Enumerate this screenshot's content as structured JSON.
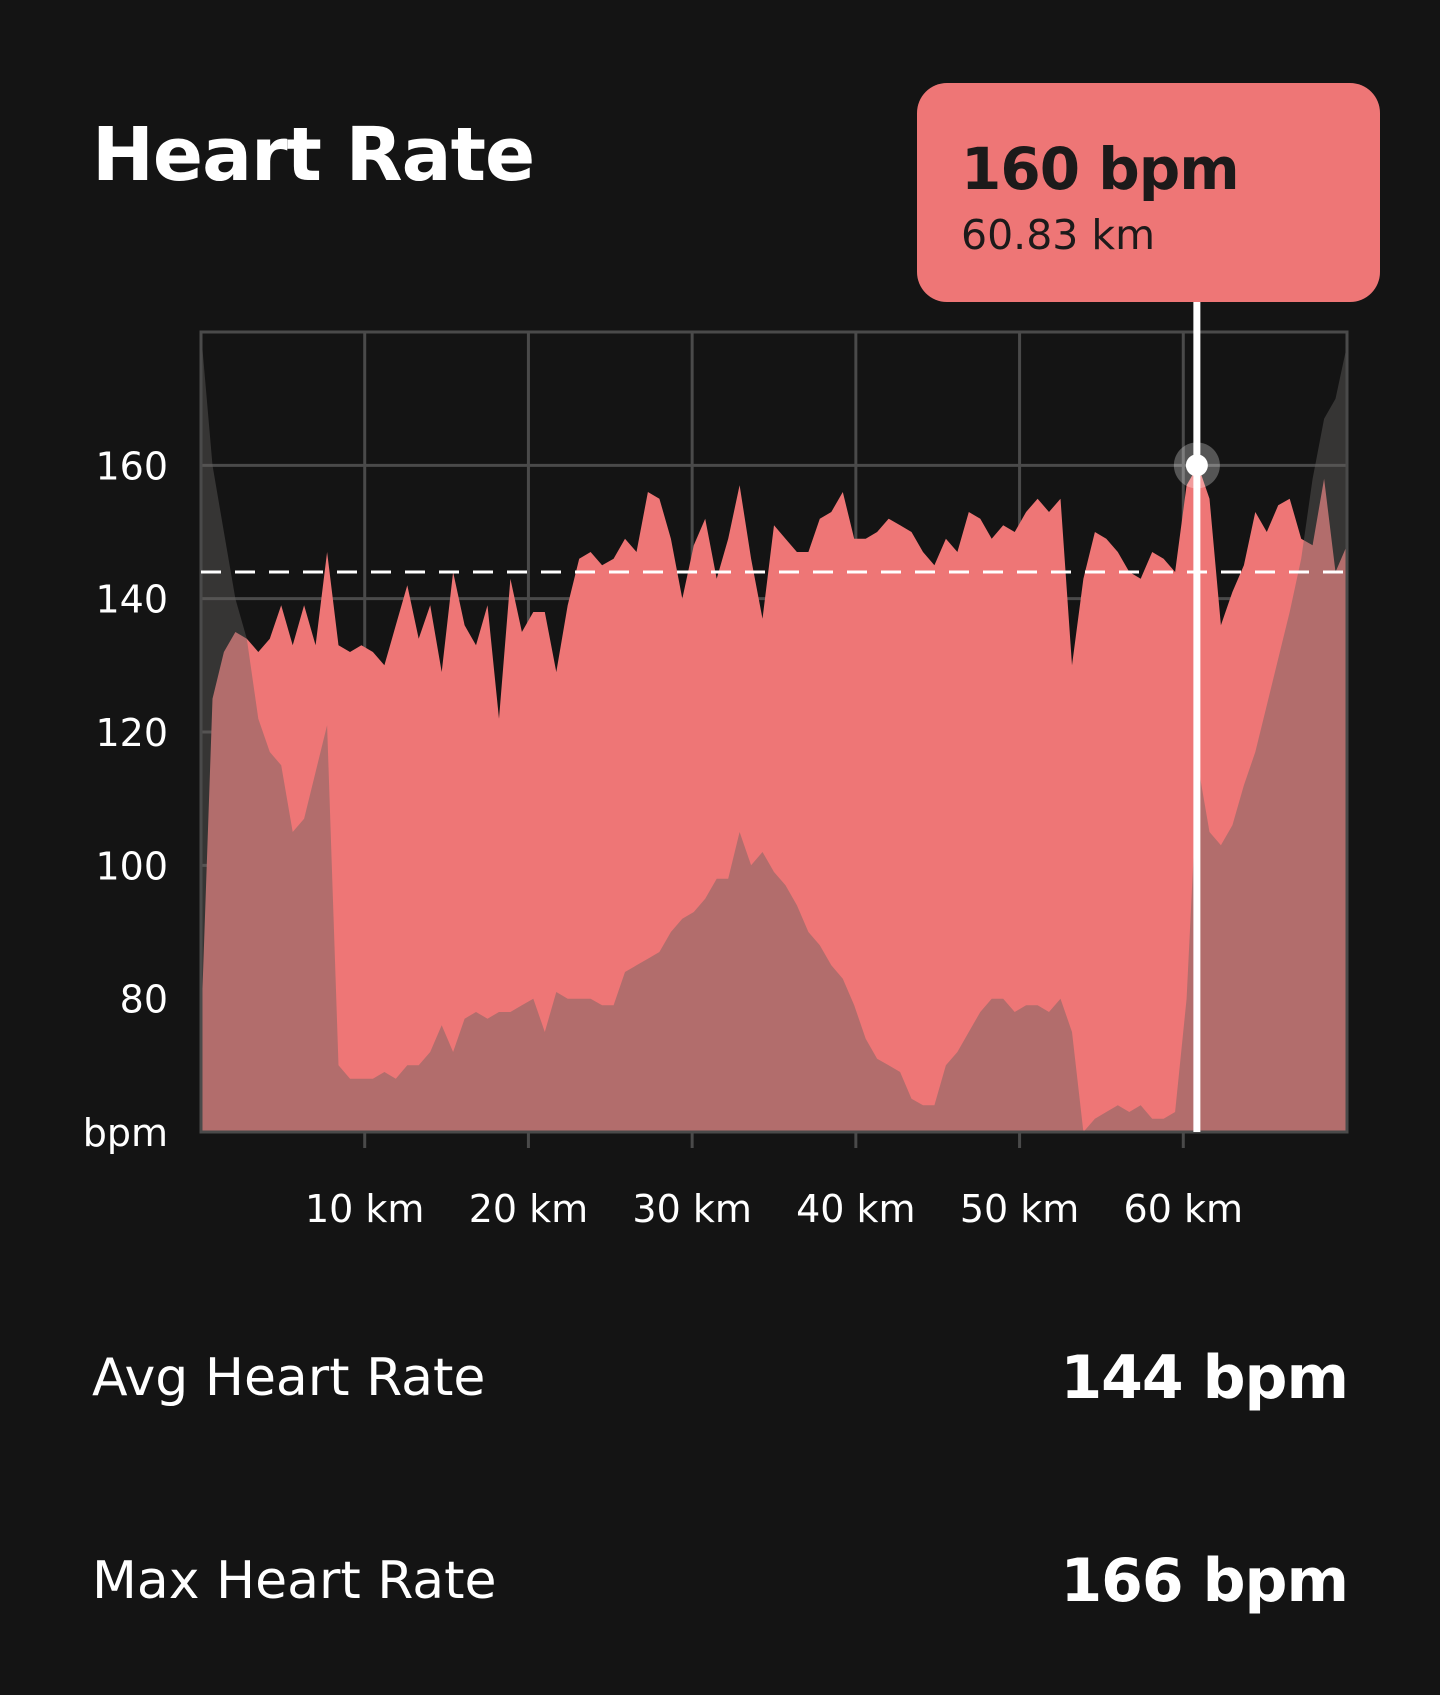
{
  "title": "Heart Rate",
  "tooltip": {
    "value": "160 bpm",
    "distance": "60.83 km"
  },
  "stats": [
    {
      "label": "Avg Heart Rate",
      "value": "144 bpm"
    },
    {
      "label": "Max Heart Rate",
      "value": "166 bpm"
    }
  ],
  "colors": {
    "background": "#141414",
    "heart_rate": "#ee7676",
    "elevation_overlay": "#646260",
    "grid": "#4a4a4a",
    "cursor": "#ffffff"
  },
  "chart_data": {
    "type": "area",
    "title": "Heart Rate",
    "xlabel": "",
    "ylabel": "bpm",
    "xlim": [
      0,
      70
    ],
    "ylim": [
      60,
      180
    ],
    "x_ticks": [
      10,
      20,
      30,
      40,
      50,
      60
    ],
    "x_tick_labels": [
      "10 km",
      "20 km",
      "30 km",
      "40 km",
      "50 km",
      "60 km"
    ],
    "y_ticks": [
      80,
      100,
      120,
      140,
      160
    ],
    "y_tick_labels": [
      "80",
      "100",
      "120",
      "140",
      "160"
    ],
    "y_unit_label": "bpm",
    "grid": true,
    "x_step_km": 0.7,
    "series": [
      {
        "name": "heart_rate",
        "values": [
          75,
          125,
          132,
          135,
          134,
          132,
          134,
          139,
          133,
          139,
          133,
          147,
          133,
          132,
          133,
          132,
          130,
          136,
          142,
          134,
          139,
          129,
          144,
          136,
          133,
          139,
          122,
          143,
          135,
          138,
          138,
          129,
          139,
          146,
          147,
          145,
          146,
          149,
          147,
          156,
          155,
          149,
          140,
          148,
          152,
          143,
          149,
          157,
          146,
          137,
          151,
          149,
          147,
          147,
          152,
          153,
          156,
          149,
          149,
          150,
          152,
          151,
          150,
          147,
          145,
          149,
          147,
          153,
          152,
          149,
          151,
          150,
          153,
          155,
          153,
          155,
          130,
          143,
          150,
          149,
          147,
          144,
          143,
          147,
          146,
          144,
          157,
          160,
          155,
          136,
          141,
          145,
          153,
          150,
          154,
          155,
          149,
          148,
          158,
          144,
          148
        ]
      },
      {
        "name": "elevation_profile",
        "values": [
          180,
          160,
          150,
          140,
          134,
          122,
          117,
          115,
          105,
          107,
          114,
          121,
          70,
          68,
          68,
          68,
          69,
          68,
          70,
          70,
          72,
          76,
          72,
          77,
          78,
          77,
          78,
          78,
          79,
          80,
          75,
          81,
          80,
          80,
          80,
          79,
          79,
          84,
          85,
          86,
          87,
          90,
          92,
          93,
          95,
          98,
          98,
          105,
          100,
          102,
          99,
          97,
          94,
          90,
          88,
          85,
          83,
          79,
          74,
          71,
          70,
          69,
          65,
          64,
          64,
          70,
          72,
          75,
          78,
          80,
          80,
          78,
          79,
          79,
          78,
          80,
          75,
          60,
          62,
          63,
          64,
          63,
          64,
          62,
          62,
          63,
          80,
          115,
          105,
          103,
          106,
          112,
          117,
          124,
          131,
          138,
          146,
          158,
          167,
          170,
          178
        ]
      }
    ],
    "average_line": 144,
    "cursor": {
      "x_km": 60.83,
      "y_bpm": 160
    }
  }
}
